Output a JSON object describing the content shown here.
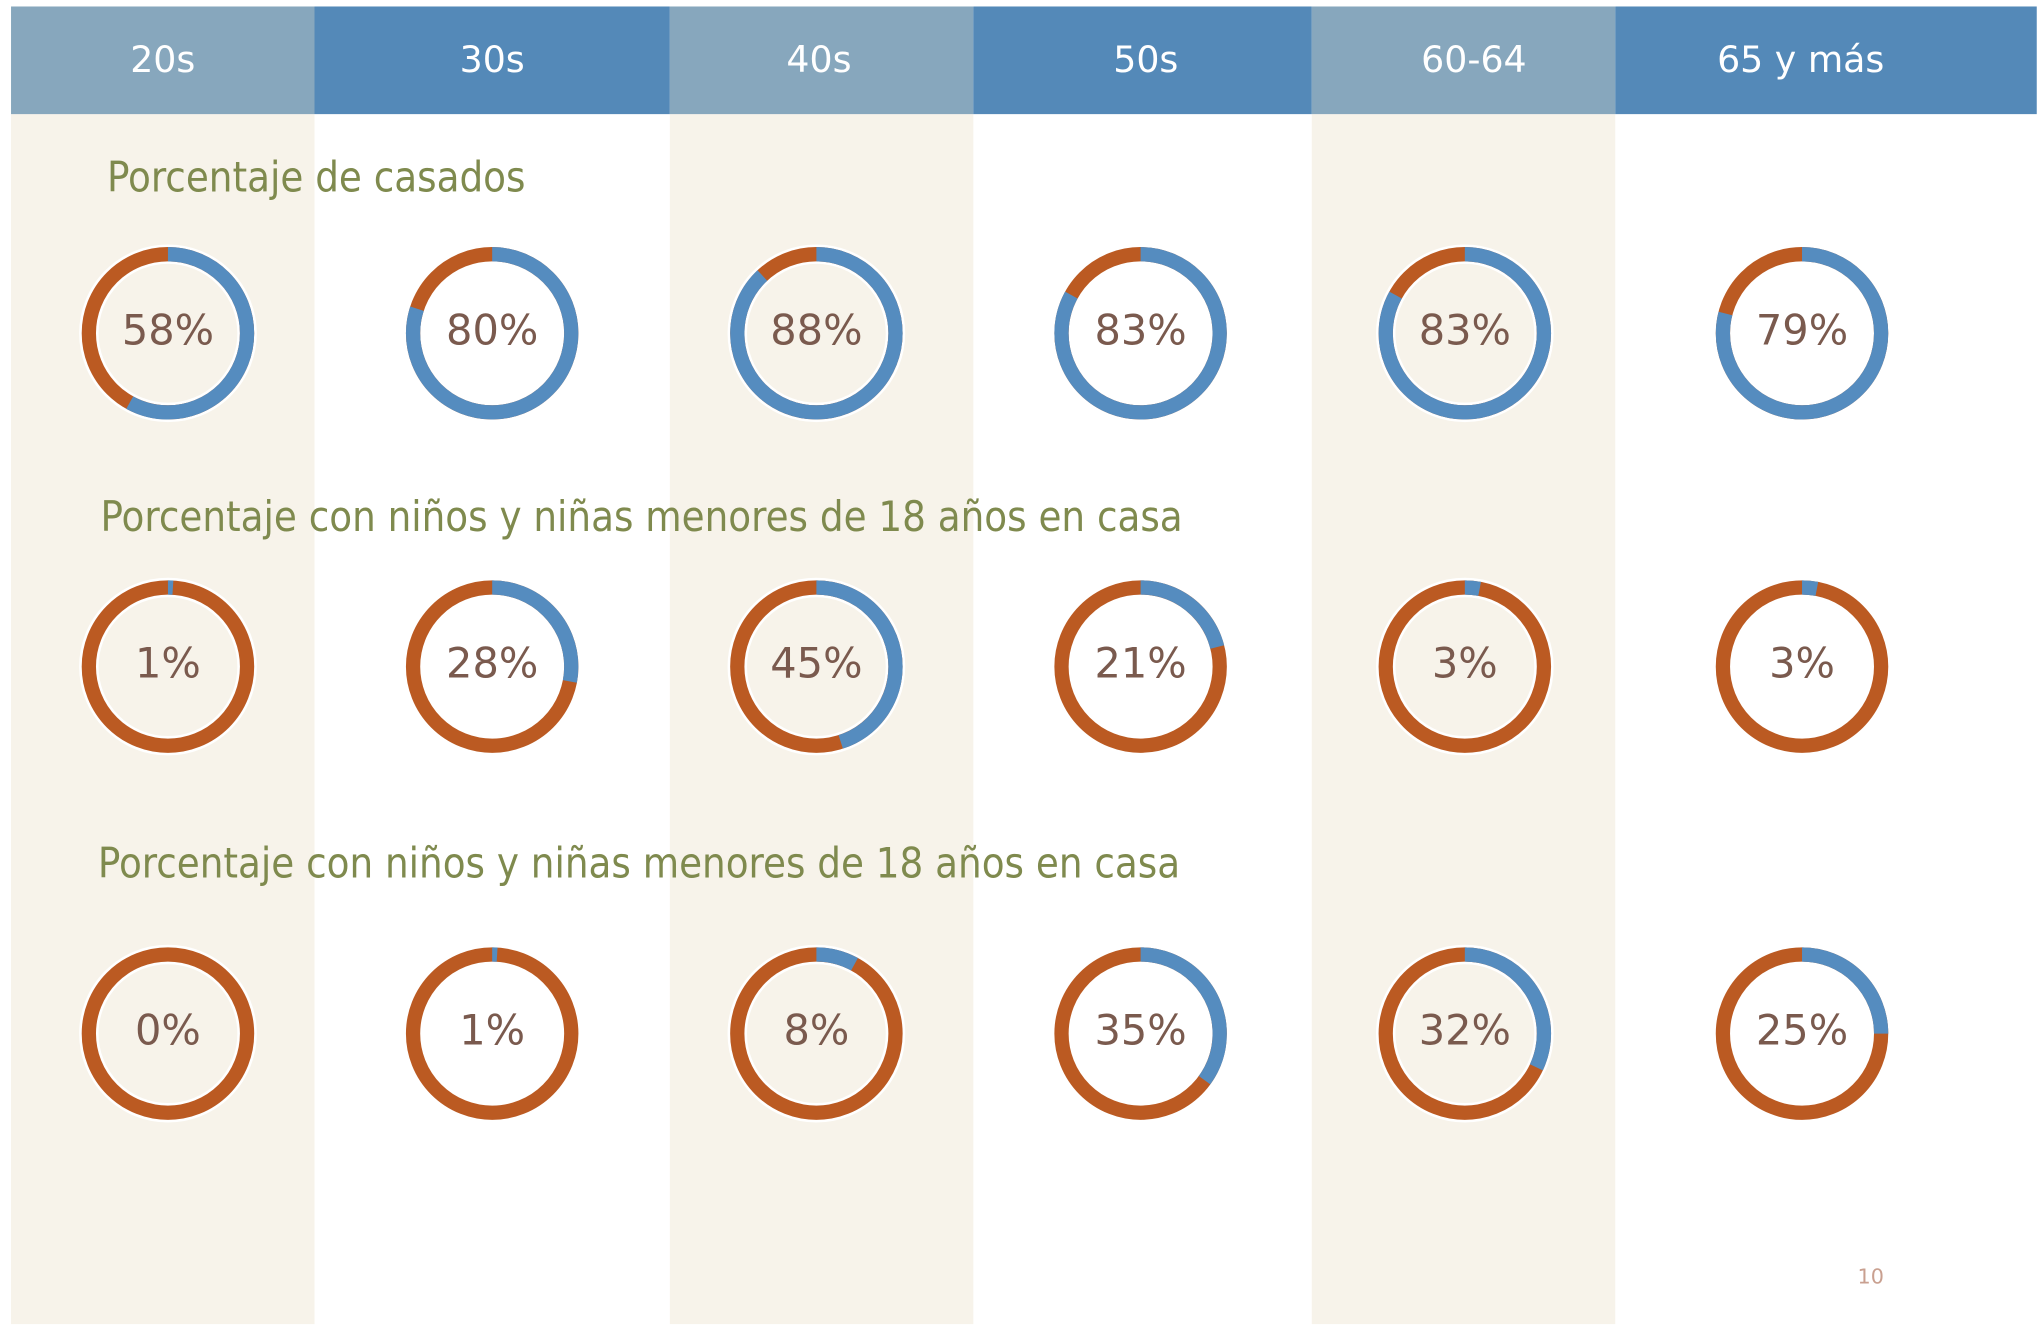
{
  "columns": [
    "20s",
    "30s",
    "40s",
    "50s",
    "60-64",
    "65 y más"
  ],
  "page_number": "10",
  "chart_data": [
    {
      "type": "donut",
      "title": "Porcentaje de casados",
      "color": "#558cbf",
      "rest_color": "#bb5a22",
      "values": [
        58,
        80,
        88,
        83,
        83,
        79
      ],
      "value_labels": [
        "58%",
        "80%",
        "88%",
        "83%",
        "83%",
        "79%"
      ]
    },
    {
      "type": "donut",
      "title": "Porcentaje con niños y niñas menores de 18 años en casa",
      "color": "#558cbf",
      "rest_color": "#bb5a22",
      "values": [
        1,
        28,
        45,
        21,
        3,
        3
      ],
      "value_labels": [
        "1%",
        "28%",
        "45%",
        "21%",
        "3%",
        "3%"
      ]
    },
    {
      "type": "donut",
      "title": "Porcentaje con niños y niñas menores de 18 años en casa",
      "color": "#558cbf",
      "rest_color": "#bb5a22",
      "values": [
        0,
        1,
        8,
        35,
        32,
        25
      ],
      "value_labels": [
        "0%",
        "1%",
        "8%",
        "35%",
        "32%",
        "25%"
      ]
    }
  ]
}
